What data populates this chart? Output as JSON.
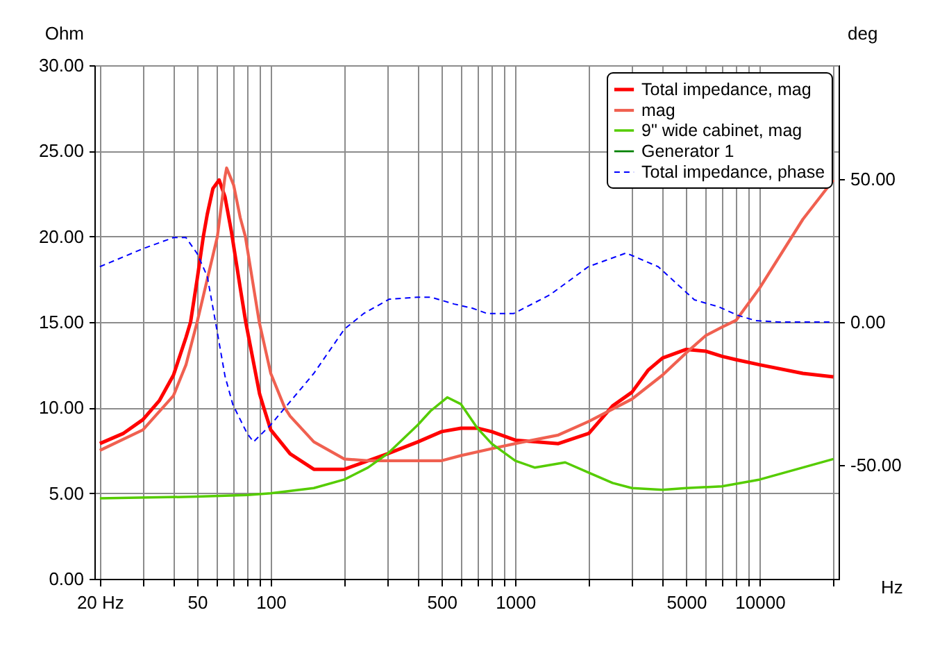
{
  "chart_data": {
    "type": "line",
    "xlabel": "Hz",
    "ylabel": "Ohm",
    "y2label": "deg",
    "log": "x",
    "grid": true,
    "legend": "top right",
    "marker": "none",
    "xlim": [
      19,
      21000
    ],
    "xticks": [
      {
        "value": 20,
        "label": "20 Hz"
      },
      {
        "value": 30,
        "label": null
      },
      {
        "value": 40,
        "label": null
      },
      50,
      {
        "value": 60,
        "label": null
      },
      {
        "value": 70,
        "label": null
      },
      {
        "value": 80,
        "label": null
      },
      {
        "value": 90,
        "label": null
      },
      100,
      {
        "value": 200,
        "label": null
      },
      {
        "value": 300,
        "label": null
      },
      {
        "value": 400,
        "label": null
      },
      500,
      {
        "value": 600,
        "label": null
      },
      {
        "value": 700,
        "label": null
      },
      {
        "value": 800,
        "label": null
      },
      {
        "value": 900,
        "label": null
      },
      1000,
      {
        "value": 2000,
        "label": null
      },
      {
        "value": 3000,
        "label": null
      },
      {
        "value": 4000,
        "label": null
      },
      5000,
      {
        "value": 6000,
        "label": null
      },
      {
        "value": 7000,
        "label": null
      },
      {
        "value": 8000,
        "label": null
      },
      {
        "value": 9000,
        "label": null
      },
      10000,
      {
        "value": 20000,
        "label": null
      }
    ],
    "ylim": [
      0,
      30
    ],
    "yticks": [
      {
        "value": 0,
        "label": "0.00"
      },
      {
        "value": 5,
        "label": "5.00"
      },
      {
        "value": 10,
        "label": "10.00"
      },
      {
        "value": 15,
        "label": "15.00"
      },
      {
        "value": 20,
        "label": "20.00"
      },
      {
        "value": 25,
        "label": "25.00"
      },
      {
        "value": 30,
        "label": "30.00"
      }
    ],
    "y2lim": [
      -90,
      90
    ],
    "y2ticks": [
      {
        "value": -50,
        "label": "-50.00"
      },
      {
        "value": 0,
        "label": "0.00"
      },
      {
        "value": 50,
        "label": "50.00"
      }
    ],
    "series": [
      {
        "name": "Total impedance, mag",
        "color": "#ff0000",
        "line_style": "solid",
        "x": [
          20,
          25,
          30,
          35,
          40,
          45,
          47,
          50,
          53,
          55,
          58,
          61.5,
          65,
          69,
          75,
          79,
          90,
          93.6,
          100,
          120,
          150,
          200,
          300,
          400,
          500,
          600,
          700,
          800,
          1000,
          1500,
          2000,
          2500,
          3000,
          3500,
          4000,
          5000,
          6000,
          7000,
          8000,
          10000,
          15000,
          20000
        ],
        "values": [
          7.9,
          8.5,
          9.3,
          10.4,
          11.9,
          14.1,
          15,
          17.5,
          20,
          21.3,
          22.8,
          23.3,
          22.3,
          20.3,
          17,
          15,
          10.8,
          10,
          8.7,
          7.3,
          6.4,
          6.4,
          7.3,
          8.0,
          8.6,
          8.8,
          8.8,
          8.6,
          8.1,
          7.9,
          8.5,
          10.1,
          10.9,
          12.2,
          12.9,
          13.4,
          13.3,
          13.0,
          12.8,
          12.5,
          12.0,
          11.8
        ]
      },
      {
        "name": "mag",
        "color": "#f06050",
        "line_style": "solid",
        "x": [
          20,
          30,
          40,
          45,
          50,
          55,
          60.5,
          65,
          66,
          70.5,
          75,
          78.7,
          89.7,
          100,
          114,
          120,
          150,
          200,
          250,
          300,
          400,
          500,
          600,
          800,
          1000,
          1500,
          2000,
          3000,
          4000,
          5000,
          6000,
          7000,
          8000,
          10000,
          15000,
          20000
        ],
        "values": [
          7.5,
          8.7,
          10.7,
          12.5,
          15,
          17.5,
          20,
          23.5,
          24,
          23,
          21.1,
          20,
          15,
          12,
          10,
          9.5,
          8.0,
          7.0,
          6.9,
          6.9,
          6.9,
          6.9,
          7.2,
          7.6,
          7.9,
          8.4,
          9.2,
          10.5,
          11.9,
          13.2,
          14.2,
          14.7,
          15.1,
          17.0,
          21.0,
          23.3
        ]
      },
      {
        "name": "9\" wide cabinet, mag",
        "color": "#55cc00",
        "line_style": "solid",
        "x": [
          20,
          50,
          80,
          100,
          150,
          200,
          250,
          300,
          400,
          450,
          527,
          600,
          700,
          800,
          1000,
          1200,
          1600,
          2000,
          2500,
          3000,
          4000,
          5000,
          7000,
          10000,
          15000,
          20000
        ],
        "values": [
          4.7,
          4.8,
          4.9,
          5.0,
          5.3,
          5.8,
          6.5,
          7.3,
          9.0,
          9.8,
          10.6,
          10.2,
          8.8,
          7.9,
          6.9,
          6.5,
          6.8,
          6.2,
          5.6,
          5.3,
          5.2,
          5.3,
          5.4,
          5.8,
          6.5,
          7.0
        ]
      },
      {
        "name": "Generator 1",
        "color": "#008000",
        "line_style": "solid"
      },
      {
        "name": "Total impedance, phase",
        "color": "#0000ff",
        "line_style": "dashed",
        "axis": "y2",
        "x": [
          20,
          30,
          40,
          45,
          50,
          55,
          60,
          65,
          70,
          80,
          85,
          100,
          150,
          200,
          240,
          305,
          396,
          453,
          563,
          670,
          766,
          986,
          1390,
          1990,
          2840,
          3840,
          5400,
          6800,
          8100,
          9600,
          12000,
          20000
        ],
        "values": [
          19.4,
          25.7,
          29.6,
          29.6,
          24,
          16,
          -2,
          -19,
          -29,
          -39,
          -42,
          -36,
          -18,
          -2.5,
          3,
          8,
          8.7,
          8.7,
          6.3,
          4.8,
          3,
          3,
          9.6,
          19.4,
          24.2,
          19.4,
          7.8,
          5.3,
          2.4,
          0.5,
          0,
          0
        ]
      }
    ]
  }
}
